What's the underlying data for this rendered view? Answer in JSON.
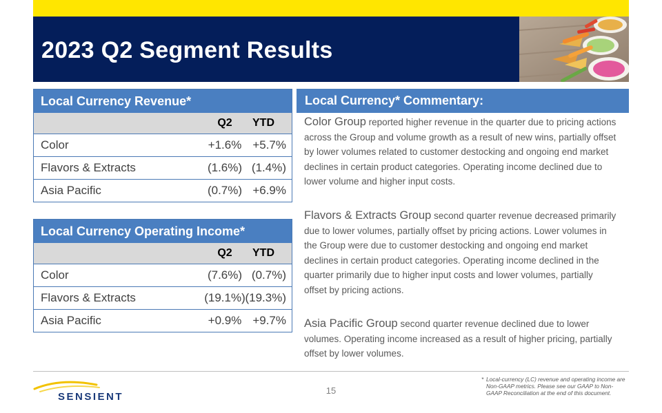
{
  "header": {
    "title": "2023 Q2 Segment Results"
  },
  "revenue_table": {
    "title": "Local Currency Revenue*",
    "columns": [
      "Q2",
      "YTD"
    ],
    "rows": [
      {
        "label": "Color",
        "q2": "+1.6%",
        "ytd": "+5.7%"
      },
      {
        "label": "Flavors & Extracts",
        "q2": "(1.6%)",
        "ytd": "(1.4%)"
      },
      {
        "label": "Asia Pacific",
        "q2": "(0.7%)",
        "ytd": "+6.9%"
      }
    ]
  },
  "income_table": {
    "title": "Local Currency Operating Income*",
    "columns": [
      "Q2",
      "YTD"
    ],
    "rows": [
      {
        "label": "Color",
        "q2": "(7.6%)",
        "ytd": "(0.7%)"
      },
      {
        "label": "Flavors & Extracts",
        "q2": "(19.1%)",
        "ytd": "(19.3%)"
      },
      {
        "label": "Asia Pacific",
        "q2": "+0.9%",
        "ytd": "+9.7%"
      }
    ]
  },
  "commentary": {
    "title": "Local Currency* Commentary:",
    "paragraphs": [
      {
        "lead": "Color Group",
        "text": " reported higher revenue in the quarter due to pricing actions across the Group and volume growth as a result of new wins, partially offset by lower volumes related to customer destocking and ongoing end market declines in certain product categories. Operating income declined due to lower volume and higher input costs."
      },
      {
        "lead": "Flavors & Extracts Group",
        "text": " second quarter revenue decreased primarily due to lower volumes, partially offset by pricing actions. Lower volumes in the Group were due to customer destocking and ongoing end market declines in certain product categories. Operating income declined in the quarter primarily due to higher input costs and lower volumes, partially offset by pricing actions."
      },
      {
        "lead": "Asia Pacific Group",
        "text": " second quarter revenue declined due to lower volumes.  Operating income increased as a result of higher pricing, partially offset by lower volumes."
      }
    ]
  },
  "footer": {
    "logo_text": "SENSIENT",
    "page_number": "15",
    "footnote_marker": "*",
    "footnote": "Local-currency (LC) revenue and operating income are Non-GAAP metrics. Please see our GAAP to Non-GAAP Reconciliation at the end of this document."
  },
  "colors": {
    "accent_yellow": "#ffe600",
    "title_navy": "#041e5a",
    "header_blue": "#4a7fc1",
    "table_column_header_gray": "#d9d9d9"
  }
}
